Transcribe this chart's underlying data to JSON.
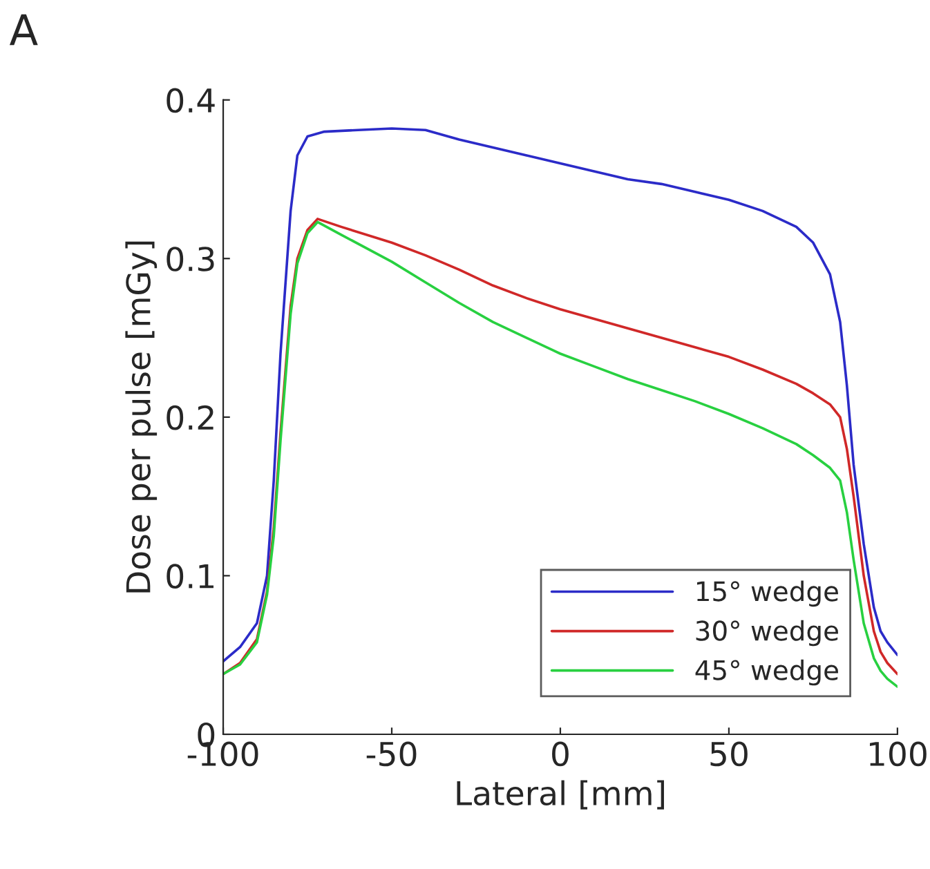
{
  "chart_data": {
    "type": "line",
    "title": "A",
    "xlabel": "Lateral [mm]",
    "ylabel": "Dose per pulse [mGy]",
    "xlim": [
      -100,
      100
    ],
    "xticks": [
      -100,
      -50,
      0,
      50,
      100
    ],
    "ylim": [
      0,
      0.4
    ],
    "yticks": [
      0,
      0.1,
      0.2,
      0.3,
      0.4
    ],
    "grid": false,
    "legend": "bottom right",
    "marker": "none",
    "line_style": "solid",
    "series": [
      {
        "name": "15° wedge",
        "color": "#2b2bc8",
        "x": [
          -100,
          -95,
          -90,
          -87,
          -85,
          -83,
          -80,
          -78,
          -75,
          -70,
          -60,
          -50,
          -40,
          -30,
          -20,
          -10,
          0,
          10,
          20,
          30,
          40,
          50,
          60,
          70,
          75,
          80,
          83,
          85,
          87,
          90,
          93,
          95,
          97,
          100
        ],
        "values": [
          0.046,
          0.055,
          0.07,
          0.1,
          0.16,
          0.24,
          0.33,
          0.365,
          0.377,
          0.38,
          0.381,
          0.382,
          0.381,
          0.375,
          0.37,
          0.365,
          0.36,
          0.355,
          0.35,
          0.347,
          0.342,
          0.337,
          0.33,
          0.32,
          0.31,
          0.29,
          0.26,
          0.22,
          0.17,
          0.12,
          0.08,
          0.065,
          0.058,
          0.05
        ]
      },
      {
        "name": "30° wedge",
        "color": "#d02828",
        "x": [
          -100,
          -95,
          -90,
          -87,
          -85,
          -83,
          -80,
          -78,
          -75,
          -72,
          -65,
          -50,
          -40,
          -30,
          -20,
          -10,
          0,
          10,
          20,
          30,
          40,
          50,
          60,
          70,
          75,
          80,
          83,
          85,
          87,
          90,
          93,
          95,
          97,
          100
        ],
        "values": [
          0.038,
          0.045,
          0.06,
          0.09,
          0.13,
          0.19,
          0.27,
          0.3,
          0.318,
          0.325,
          0.32,
          0.31,
          0.302,
          0.293,
          0.283,
          0.275,
          0.268,
          0.262,
          0.256,
          0.25,
          0.244,
          0.238,
          0.23,
          0.221,
          0.215,
          0.208,
          0.2,
          0.18,
          0.15,
          0.1,
          0.065,
          0.052,
          0.045,
          0.038
        ]
      },
      {
        "name": "45° wedge",
        "color": "#28d040",
        "x": [
          -100,
          -95,
          -90,
          -87,
          -85,
          -83,
          -80,
          -78,
          -75,
          -72,
          -65,
          -50,
          -40,
          -30,
          -20,
          -10,
          0,
          10,
          20,
          30,
          40,
          50,
          60,
          70,
          75,
          80,
          83,
          85,
          87,
          90,
          93,
          95,
          97,
          100
        ],
        "values": [
          0.038,
          0.044,
          0.058,
          0.088,
          0.125,
          0.185,
          0.265,
          0.297,
          0.316,
          0.323,
          0.315,
          0.298,
          0.285,
          0.272,
          0.26,
          0.25,
          0.24,
          0.232,
          0.224,
          0.217,
          0.21,
          0.202,
          0.193,
          0.183,
          0.176,
          0.168,
          0.16,
          0.14,
          0.11,
          0.07,
          0.048,
          0.04,
          0.035,
          0.03
        ]
      }
    ]
  }
}
